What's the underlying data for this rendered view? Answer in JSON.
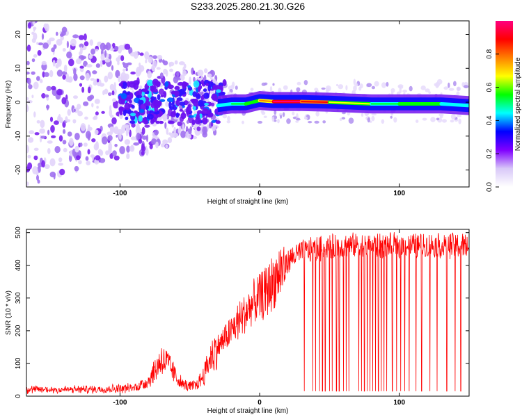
{
  "figure": {
    "title": "S233.2025.280.21.30.G26",
    "background": "#ffffff"
  },
  "chart_data": [
    {
      "type": "heatmap",
      "name": "spectrogram",
      "title": "S233.2025.280.21.30.G26",
      "xlabel": "Height of straight line (km)",
      "ylabel": "Frequency (Hz)",
      "xlim": [
        -167,
        150
      ],
      "ylim": [
        -25,
        24
      ],
      "xticks": [
        -100,
        0,
        100
      ],
      "yticks": [
        -20,
        -10,
        0,
        10,
        20
      ],
      "colorbar": {
        "label": "Normalized spectral amplitude",
        "range": [
          0.0,
          1.0
        ],
        "ticks": [
          0.0,
          0.2,
          0.4,
          0.6,
          0.8
        ],
        "colormap": [
          "#ffffff",
          "#d8c8f8",
          "#8000ff",
          "#0000ff",
          "#00ffff",
          "#00ff00",
          "#ffff00",
          "#ff8000",
          "#ff0000",
          "#ff0080"
        ]
      },
      "ridge": [
        {
          "x": -30,
          "f": -1.0,
          "amp": 0.35
        },
        {
          "x": -20,
          "f": -0.5,
          "amp": 0.45
        },
        {
          "x": -10,
          "f": -0.5,
          "amp": 0.55
        },
        {
          "x": 0,
          "f": 0.5,
          "amp": 0.55
        },
        {
          "x": 10,
          "f": 0.2,
          "amp": 0.95
        },
        {
          "x": 30,
          "f": 0.2,
          "amp": 0.95
        },
        {
          "x": 50,
          "f": 0.0,
          "amp": 0.75
        },
        {
          "x": 80,
          "f": -0.5,
          "amp": 0.5
        },
        {
          "x": 100,
          "f": -0.5,
          "amp": 0.5
        },
        {
          "x": 130,
          "f": -0.5,
          "amp": 0.6
        },
        {
          "x": 150,
          "f": -1.0,
          "amp": 0.35
        }
      ],
      "noise_region": {
        "x": [
          -167,
          -30
        ],
        "f_spread_hz": 25
      }
    },
    {
      "type": "line",
      "name": "snr",
      "title": "",
      "xlabel": "Height of straight line (km)",
      "ylabel": "SNR (10 * v/v)",
      "xlim": [
        -167,
        150
      ],
      "ylim": [
        0,
        510
      ],
      "xticks": [
        -100,
        0,
        100
      ],
      "yticks": [
        0,
        100,
        200,
        300,
        400,
        500
      ],
      "series": [
        {
          "name": "SNR",
          "color": "#ff0000",
          "x": [
            -167,
            -150,
            -130,
            -110,
            -90,
            -80,
            -75,
            -70,
            -65,
            -60,
            -55,
            -50,
            -45,
            -40,
            -35,
            -30,
            -25,
            -20,
            -15,
            -10,
            -5,
            0,
            5,
            10,
            15,
            20,
            25,
            30,
            35,
            40,
            50,
            60,
            70,
            80,
            90,
            100,
            110,
            120,
            130,
            140,
            150
          ],
          "values": [
            20,
            20,
            20,
            22,
            25,
            45,
            80,
            115,
            95,
            60,
            35,
            30,
            35,
            65,
            120,
            150,
            175,
            200,
            230,
            255,
            280,
            300,
            320,
            350,
            380,
            410,
            430,
            440,
            445,
            450,
            455,
            460,
            460,
            460,
            460,
            460,
            460,
            460,
            460,
            460,
            460
          ]
        }
      ],
      "dropouts_x": [
        32,
        38,
        40,
        43,
        45,
        47,
        50,
        52,
        55,
        57,
        60,
        62,
        64,
        71,
        73,
        75,
        77,
        79,
        81,
        83,
        85,
        87,
        89,
        91,
        95,
        98,
        101,
        104,
        107,
        112,
        116,
        122,
        127,
        134,
        140,
        144
      ]
    }
  ]
}
